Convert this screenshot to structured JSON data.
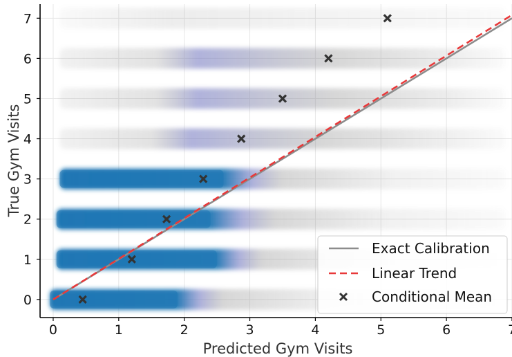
{
  "chart_data": {
    "type": "scatter",
    "xlabel": "Predicted Gym Visits",
    "ylabel": "True Gym Visits",
    "xlim": [
      -0.2,
      7.0
    ],
    "ylim": [
      -0.45,
      7.35
    ],
    "xticks": [
      "0",
      "1",
      "2",
      "3",
      "4",
      "5",
      "6",
      "7"
    ],
    "yticks": [
      "0",
      "1",
      "2",
      "3",
      "4",
      "5",
      "6",
      "7"
    ],
    "grid": true,
    "legend_position": "bottom-right",
    "colors": {
      "dense": "#1f77b4",
      "mid": "#7a7fc4",
      "sparse": "#8c8c8c",
      "calibration": "#8c8c8c",
      "trend": "#e8393a",
      "mean": "#333333"
    },
    "series": [
      {
        "name": "Exact Calibration",
        "kind": "line",
        "x": [
          0,
          7
        ],
        "y": [
          0,
          7
        ]
      },
      {
        "name": "Linear Trend",
        "kind": "line",
        "x": [
          0,
          7
        ],
        "y": [
          0,
          7.08
        ]
      },
      {
        "name": "Conditional Mean",
        "kind": "marker",
        "points": [
          {
            "x": 0.45,
            "y": 0
          },
          {
            "x": 1.2,
            "y": 1
          },
          {
            "x": 1.73,
            "y": 2
          },
          {
            "x": 2.29,
            "y": 3
          },
          {
            "x": 2.87,
            "y": 4
          },
          {
            "x": 3.5,
            "y": 5
          },
          {
            "x": 4.2,
            "y": 6
          },
          {
            "x": 5.1,
            "y": 7
          }
        ]
      }
    ],
    "bands": [
      {
        "y": 0,
        "x_start": -0.05,
        "dense_end": 1.9,
        "mid_end": 2.6,
        "sparse_end": 6.9
      },
      {
        "y": 1,
        "x_start": 0.05,
        "dense_end": 2.5,
        "mid_end": 3.2,
        "sparse_end": 6.9
      },
      {
        "y": 2,
        "x_start": 0.05,
        "dense_end": 2.4,
        "mid_end": 3.4,
        "sparse_end": 6.9
      },
      {
        "y": 3,
        "x_start": 0.1,
        "dense_end": 2.6,
        "mid_end": 3.5,
        "sparse_end": 6.9
      },
      {
        "y": 4,
        "x_start": 0.1,
        "dense_end": 0,
        "mid_end": 4.1,
        "sparse_end": 6.9
      },
      {
        "y": 5,
        "x_start": 0.1,
        "dense_end": 0,
        "mid_end": 4.3,
        "sparse_end": 6.9
      },
      {
        "y": 6,
        "x_start": 0.1,
        "dense_end": 0,
        "mid_end": 4.3,
        "sparse_end": 6.9
      },
      {
        "y": 7,
        "x_start": 0.1,
        "dense_end": 0,
        "mid_end": 0,
        "sparse_end": 6.9
      }
    ]
  }
}
